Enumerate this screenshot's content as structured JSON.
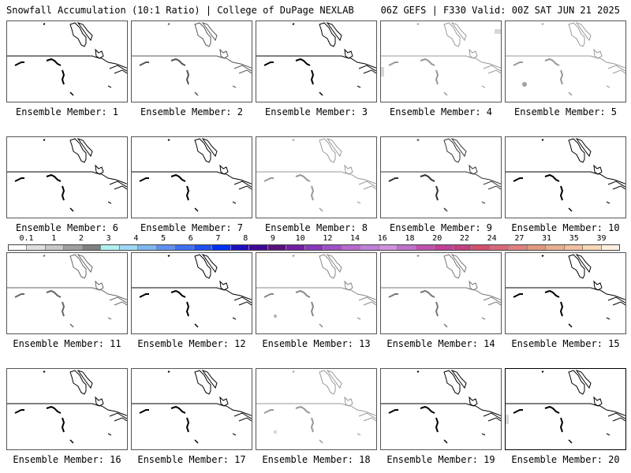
{
  "header": {
    "title_left": "Snowfall Accumulation (10:1 Ratio) | College of DuPage NEXLAB",
    "title_right": "06Z GEFS | F330 Valid: 00Z SAT JUN 21 2025"
  },
  "members": [
    {
      "label": "Ensemble Member: 1",
      "line_color": "#000000",
      "snow": []
    },
    {
      "label": "Ensemble Member: 2",
      "line_color": "#555555",
      "snow": []
    },
    {
      "label": "Ensemble Member: 3",
      "line_color": "#000000",
      "snow": []
    },
    {
      "label": "Ensemble Member: 4",
      "line_color": "#999999",
      "snow": [
        "light gray patch near top-right edge",
        "light gray patch at left edge"
      ]
    },
    {
      "label": "Ensemble Member: 5",
      "line_color": "#999999",
      "snow": [
        "gray patch southwest"
      ]
    },
    {
      "label": "Ensemble Member: 6",
      "line_color": "#000000",
      "snow": []
    },
    {
      "label": "Ensemble Member: 7",
      "line_color": "#000000",
      "snow": []
    },
    {
      "label": "Ensemble Member: 8",
      "line_color": "#999999",
      "snow": []
    },
    {
      "label": "Ensemble Member: 9",
      "line_color": "#333333",
      "snow": []
    },
    {
      "label": "Ensemble Member: 10",
      "line_color": "#000000",
      "snow": []
    },
    {
      "label": "Ensemble Member: 11",
      "line_color": "#666666",
      "snow": []
    },
    {
      "label": "Ensemble Member: 12",
      "line_color": "#000000",
      "snow": []
    },
    {
      "label": "Ensemble Member: 13",
      "line_color": "#888888",
      "snow": [
        "gray speck southwest"
      ]
    },
    {
      "label": "Ensemble Member: 14",
      "line_color": "#777777",
      "snow": []
    },
    {
      "label": "Ensemble Member: 15",
      "line_color": "#000000",
      "snow": []
    },
    {
      "label": "Ensemble Member: 16",
      "line_color": "#000000",
      "snow": []
    },
    {
      "label": "Ensemble Member: 17",
      "line_color": "#000000",
      "snow": []
    },
    {
      "label": "Ensemble Member: 18",
      "line_color": "#999999",
      "snow": [
        "light gray speck southwest"
      ]
    },
    {
      "label": "Ensemble Member: 19",
      "line_color": "#000000",
      "snow": []
    },
    {
      "label": "Ensemble Member: 20",
      "line_color": "#000000",
      "snow": [
        "light gray patch at left edge"
      ]
    }
  ],
  "colorbar": {
    "ticks": [
      "0.1",
      "1",
      "2",
      "3",
      "4",
      "5",
      "6",
      "7",
      "8",
      "9",
      "10",
      "12",
      "14",
      "16",
      "18",
      "20",
      "22",
      "24",
      "27",
      "31",
      "35",
      "39"
    ],
    "colors": [
      "#ffffff",
      "#e0e0e0",
      "#c8c8c8",
      "#a0a0a0",
      "#808080",
      "#b0f0f0",
      "#a0d8f8",
      "#80b8f0",
      "#6090f0",
      "#4070f0",
      "#2050f0",
      "#0030f0",
      "#2010c0",
      "#400898",
      "#5a1080",
      "#7020a0",
      "#8838b8",
      "#a050c8",
      "#b868d0",
      "#c080d8",
      "#d090e0",
      "#c070c8",
      "#c050b0",
      "#c04098",
      "#c04080",
      "#d05070",
      "#d86878",
      "#e08080",
      "#e09880",
      "#e8b090",
      "#f0c0a0",
      "#f8d8b8",
      "#fff0e0"
    ]
  }
}
